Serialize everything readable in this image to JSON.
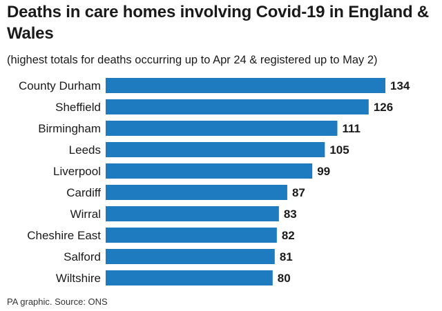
{
  "chart_data": {
    "type": "bar",
    "orientation": "horizontal",
    "title": "Deaths in care homes involving Covid-19 in England & Wales",
    "subtitle": "(highest totals for deaths occurring up to Apr 24 & registered up to May 2)",
    "categories": [
      "County Durham",
      "Sheffield",
      "Birmingham",
      "Leeds",
      "Liverpool",
      "Cardiff",
      "Wirral",
      "Cheshire East",
      "Salford",
      "Wiltshire"
    ],
    "values": [
      134,
      126,
      111,
      105,
      99,
      87,
      83,
      82,
      81,
      80
    ],
    "xlabel": "",
    "ylabel": "",
    "xlim": [
      0,
      134
    ],
    "grid": false,
    "bar_color": "#1f7bbf",
    "source": "PA graphic. Source: ONS"
  }
}
